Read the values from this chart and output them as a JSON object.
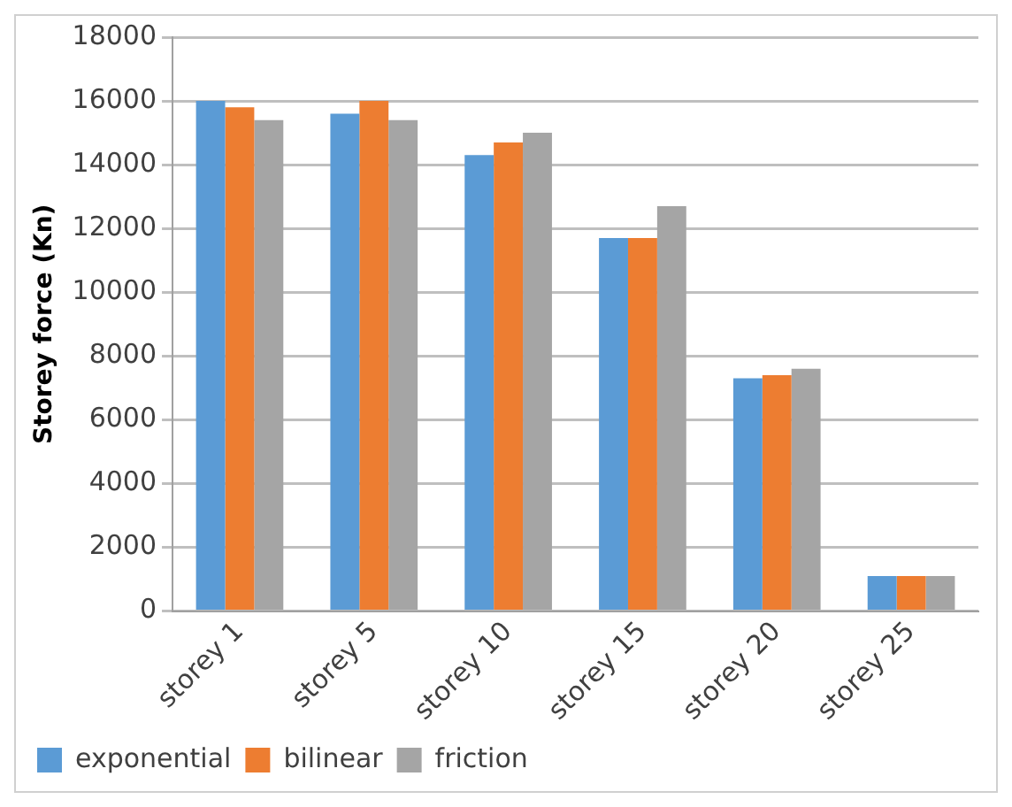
{
  "chart_data": {
    "type": "bar",
    "ylabel": "Storey force (Kn)",
    "categories": [
      "storey 1",
      "storey 5",
      "storey 10",
      "storey 15",
      "storey 20",
      "storey 25"
    ],
    "series": [
      {
        "name": "exponential",
        "color": "#5b9bd5",
        "values": [
          16000,
          15600,
          14300,
          11700,
          7300,
          1100
        ]
      },
      {
        "name": "bilinear",
        "color": "#ed7d31",
        "values": [
          15800,
          16000,
          14700,
          11700,
          7400,
          1100
        ]
      },
      {
        "name": "friction",
        "color": "#a5a5a5",
        "values": [
          15400,
          15400,
          15000,
          12700,
          7600,
          1100
        ]
      }
    ],
    "ylim": [
      0,
      18000
    ],
    "yticks": [
      0,
      2000,
      4000,
      6000,
      8000,
      10000,
      12000,
      14000,
      16000,
      18000
    ],
    "grid": "y",
    "legend": "bottom left"
  }
}
